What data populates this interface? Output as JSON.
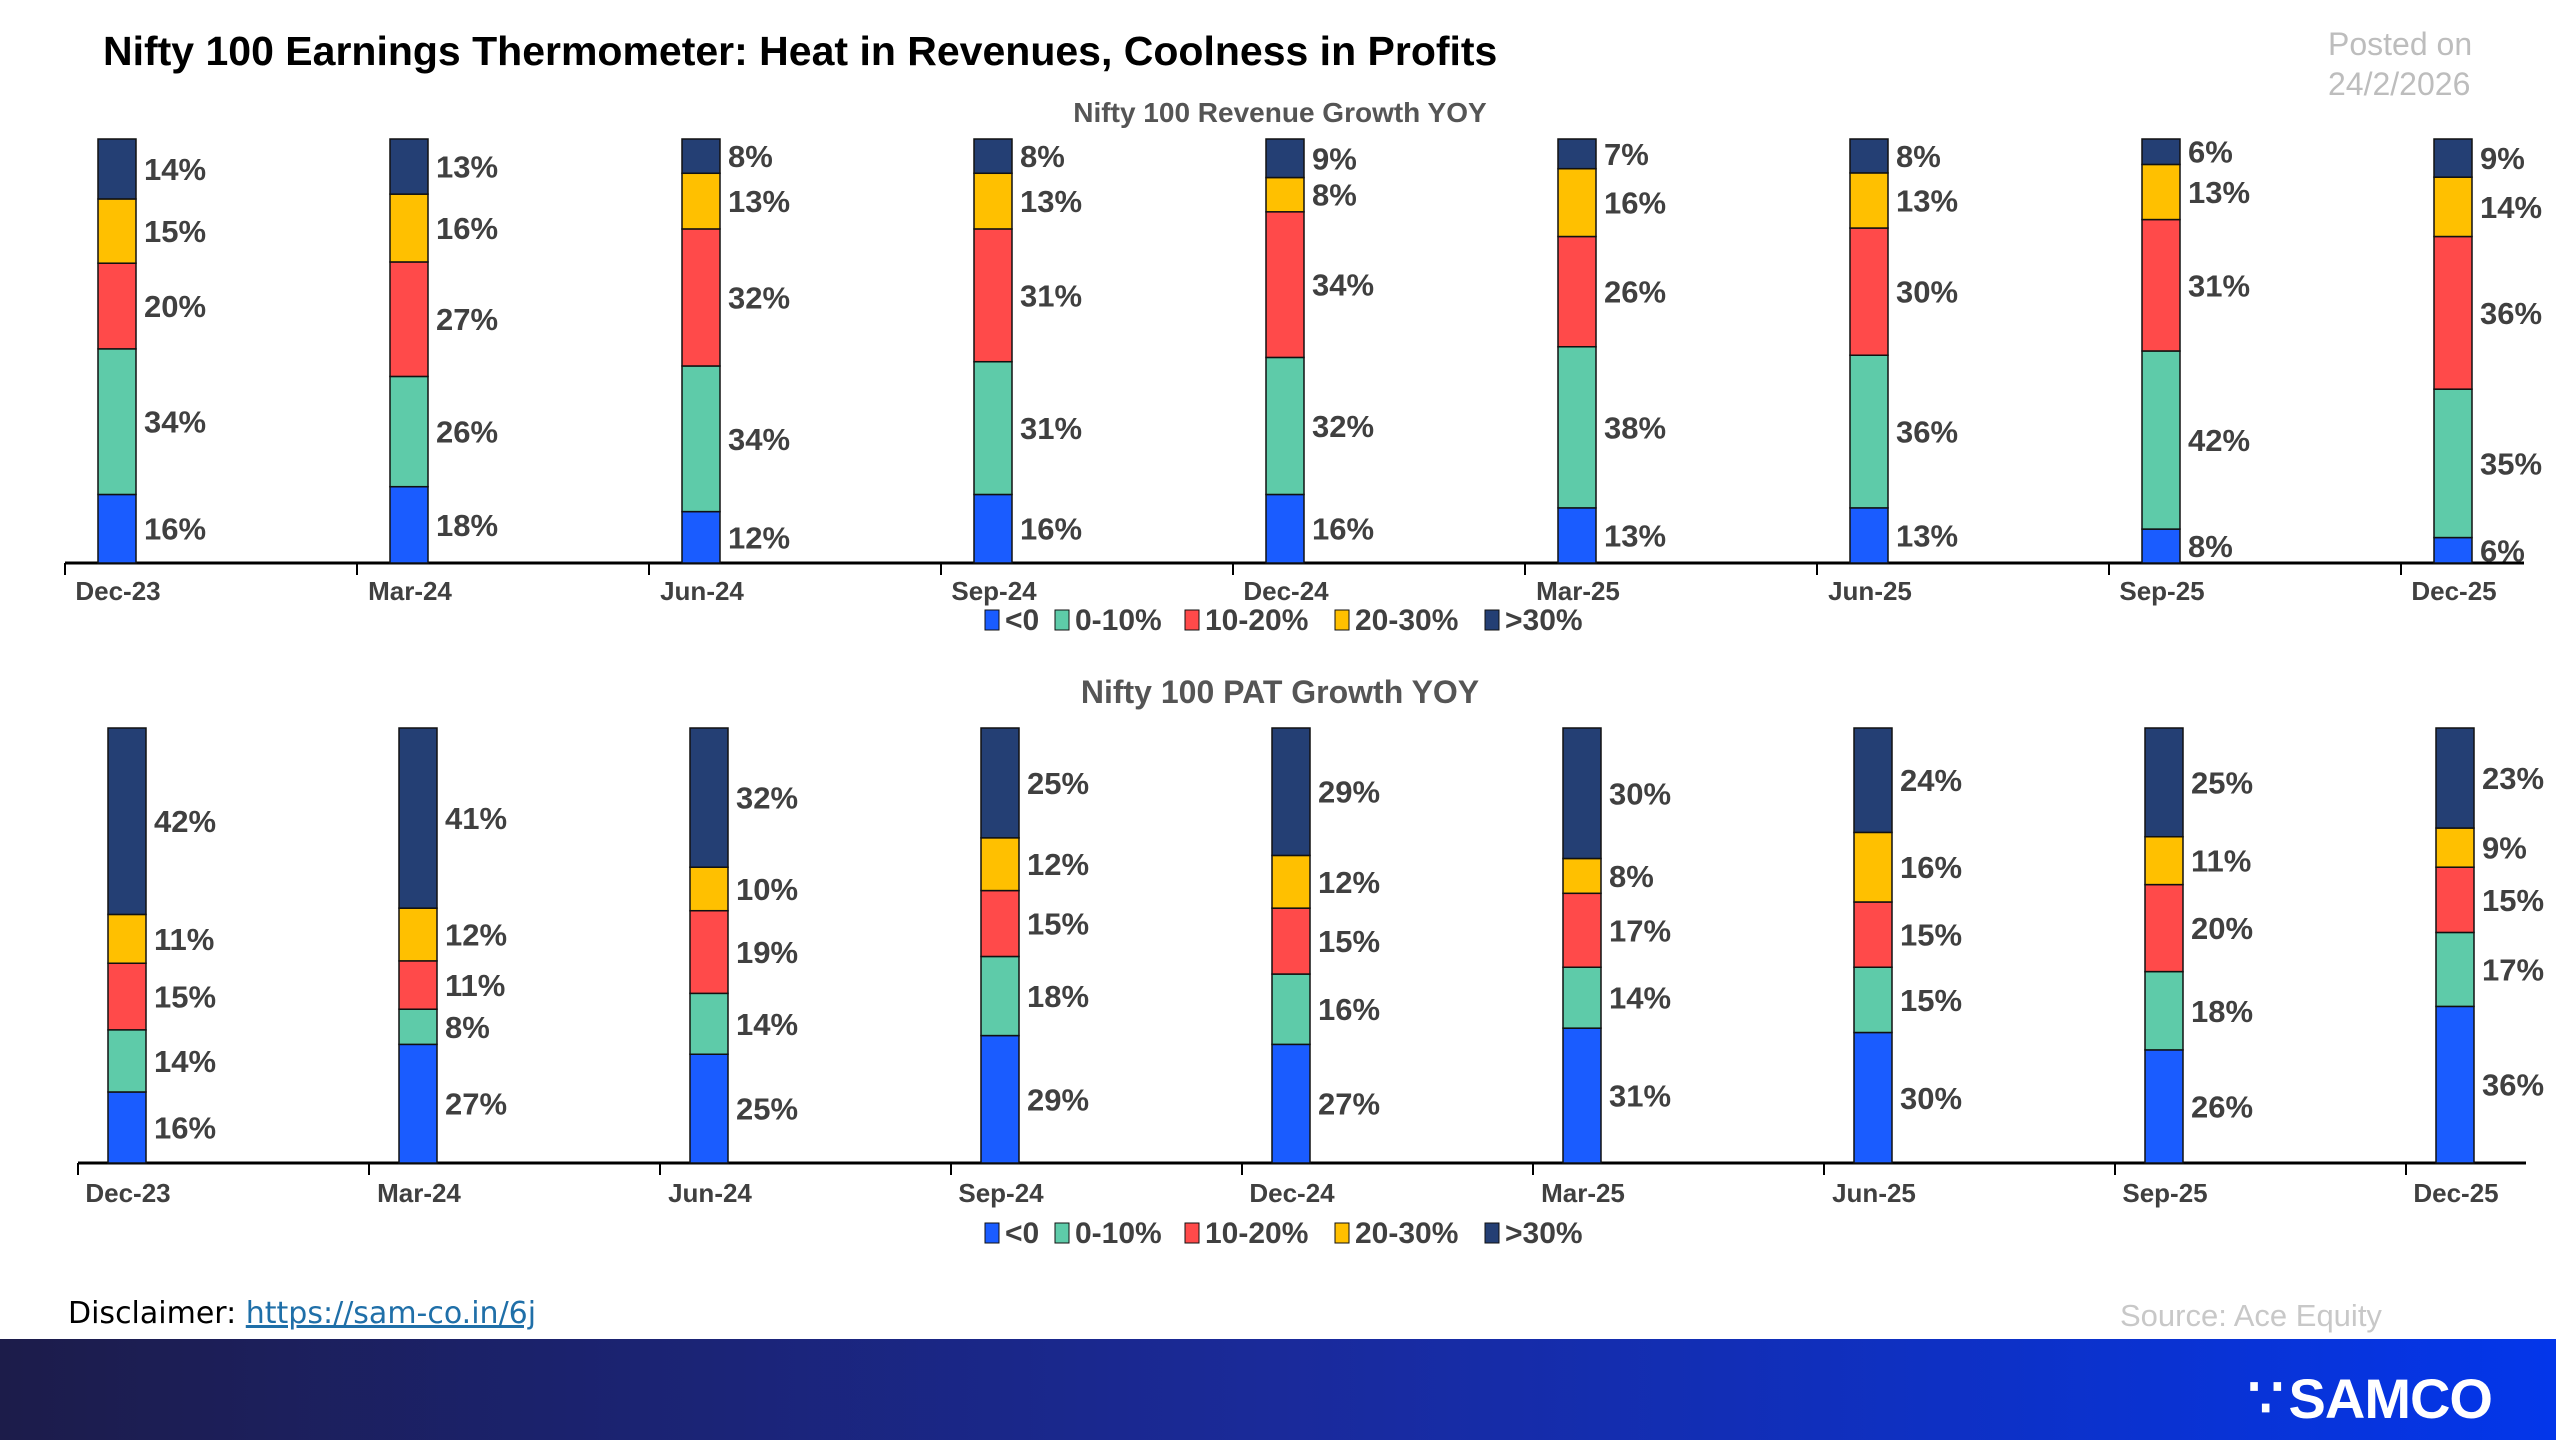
{
  "title": "Nifty 100 Earnings Thermometer: Heat in Revenues, Coolness in Profits",
  "posted": {
    "line1": "Posted on",
    "line2": "24/2/2026"
  },
  "footer": {
    "disclaimer_label": "Disclaimer:",
    "disclaimer_link": "https://sam-co.in/6j",
    "source": "Source: Ace Equity",
    "logo": "SAMCO"
  },
  "legend_colors": [
    "#1a5cff",
    "#5ecba9",
    "#ff4a4a",
    "#ffc000",
    "#243f74"
  ],
  "chart_data": [
    {
      "type": "bar",
      "stacked": true,
      "title": "Nifty 100 Revenue Growth YOY",
      "categories": [
        "Dec-23",
        "Mar-24",
        "Jun-24",
        "Sep-24",
        "Dec-24",
        "Mar-25",
        "Jun-25",
        "Sep-25",
        "Dec-25"
      ],
      "legend_position": "bottom",
      "series": [
        {
          "name": "<0",
          "values": [
            16,
            18,
            12,
            16,
            16,
            13,
            13,
            8,
            6
          ]
        },
        {
          "name": "0-10%",
          "values": [
            34,
            26,
            34,
            31,
            32,
            38,
            36,
            42,
            35
          ]
        },
        {
          "name": "10-20%",
          "values": [
            20,
            27,
            32,
            31,
            34,
            26,
            30,
            31,
            36
          ]
        },
        {
          "name": "20-30%",
          "values": [
            15,
            16,
            13,
            13,
            8,
            16,
            13,
            13,
            14
          ]
        },
        {
          "name": ">30%",
          "values": [
            14,
            13,
            8,
            8,
            9,
            7,
            8,
            6,
            9
          ]
        }
      ]
    },
    {
      "type": "bar",
      "stacked": true,
      "title": "Nifty 100 PAT Growth YOY",
      "categories": [
        "Dec-23",
        "Mar-24",
        "Jun-24",
        "Sep-24",
        "Dec-24",
        "Mar-25",
        "Jun-25",
        "Sep-25",
        "Dec-25"
      ],
      "legend_position": "bottom",
      "series": [
        {
          "name": "<0",
          "values": [
            16,
            27,
            25,
            29,
            27,
            31,
            30,
            26,
            36
          ]
        },
        {
          "name": "0-10%",
          "values": [
            14,
            8,
            14,
            18,
            16,
            14,
            15,
            18,
            17
          ]
        },
        {
          "name": "10-20%",
          "values": [
            15,
            11,
            19,
            15,
            15,
            17,
            15,
            20,
            15
          ]
        },
        {
          "name": "20-30%",
          "values": [
            11,
            12,
            10,
            12,
            12,
            8,
            16,
            11,
            9
          ]
        },
        {
          "name": ">30%",
          "values": [
            42,
            41,
            32,
            25,
            29,
            30,
            24,
            25,
            23
          ]
        }
      ]
    }
  ]
}
